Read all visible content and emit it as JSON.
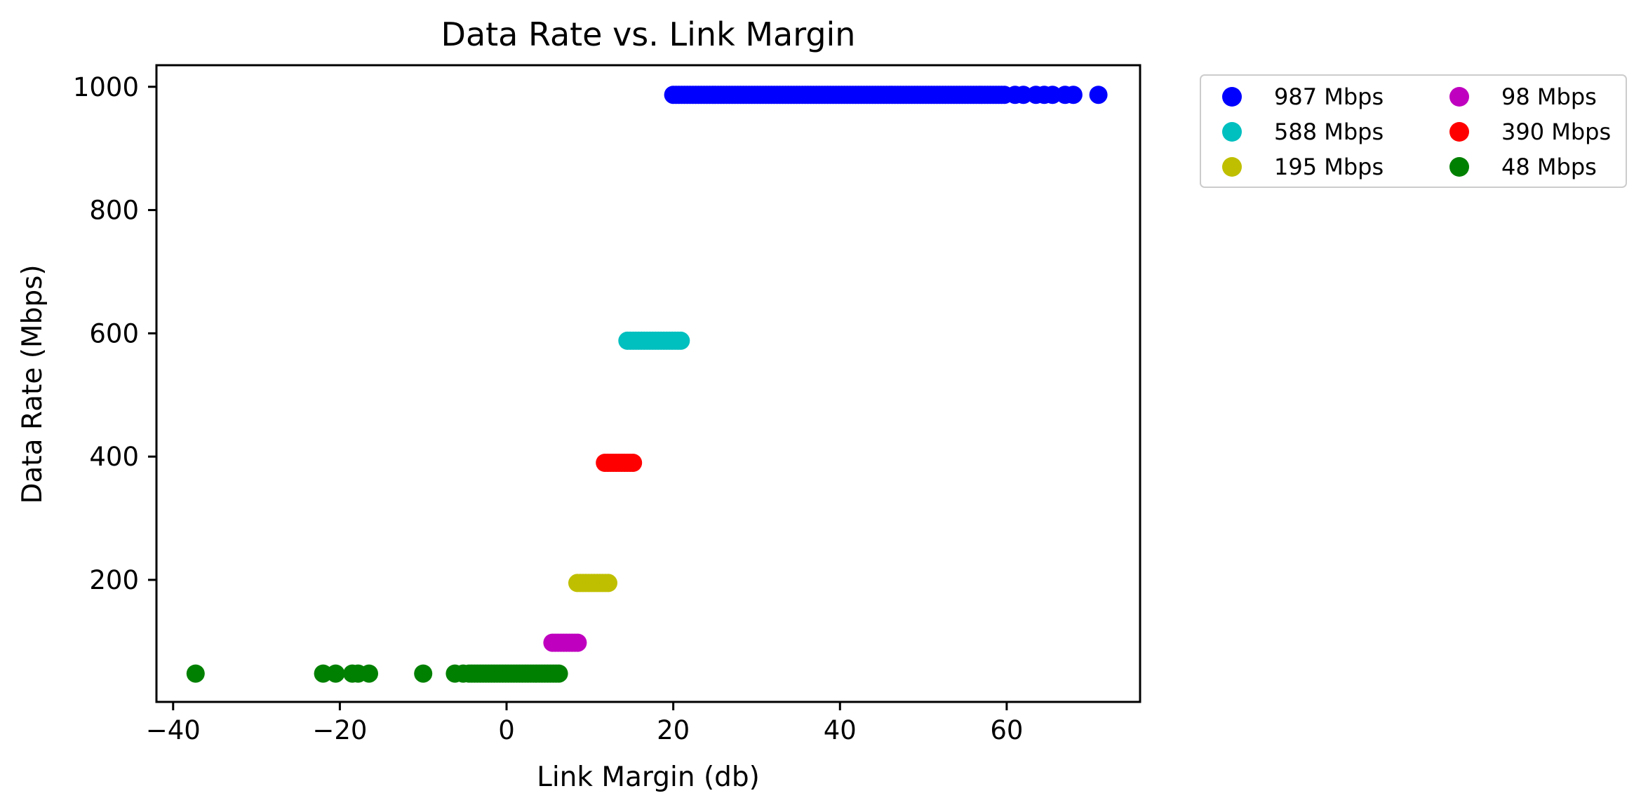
{
  "chart_data": {
    "type": "scatter",
    "title": "Data Rate vs. Link Margin",
    "xlabel": "Link Margin (db)",
    "ylabel": "Data Rate (Mbps)",
    "xlim": [
      -42,
      76
    ],
    "ylim": [
      2,
      1035
    ],
    "xticks": [
      -40,
      -20,
      0,
      20,
      40,
      60
    ],
    "xtick_labels": [
      "−40",
      "−20",
      "0",
      "20",
      "40",
      "60"
    ],
    "yticks": [
      200,
      400,
      600,
      800,
      1000
    ],
    "ytick_labels": [
      "200",
      "400",
      "600",
      "800",
      "1000"
    ],
    "grid": false,
    "legend_placement": "outside top-right, two columns",
    "series": [
      {
        "name": "987 Mbps",
        "color": "#0000ff",
        "y": 987,
        "x_dense_range": [
          20,
          60
        ],
        "x_extra": [
          61,
          62,
          63.5,
          64.5,
          65.5,
          67,
          68,
          71
        ]
      },
      {
        "name": "588 Mbps",
        "color": "#00bfbf",
        "y": 588,
        "x_dense_range": [
          14.5,
          21
        ],
        "x_extra": []
      },
      {
        "name": "195 Mbps",
        "color": "#bfbf00",
        "y": 195,
        "x_dense_range": [
          8.5,
          12.5
        ],
        "x_extra": []
      },
      {
        "name": "98 Mbps",
        "color": "#bf00bf",
        "y": 98,
        "x_dense_range": [
          5.5,
          8.8
        ],
        "x_extra": []
      },
      {
        "name": "390 Mbps",
        "color": "#ff0000",
        "y": 390,
        "x_dense_range": [
          11.8,
          15.2
        ],
        "x_extra": []
      },
      {
        "name": "48 Mbps",
        "color": "#008000",
        "y": 48,
        "x_dense_range": [
          -4.5,
          6.5
        ],
        "x_extra": [
          -37.3,
          -22,
          -20.5,
          -18.5,
          -17.8,
          -16.5,
          -10,
          -6.2,
          -5.2
        ]
      }
    ]
  }
}
